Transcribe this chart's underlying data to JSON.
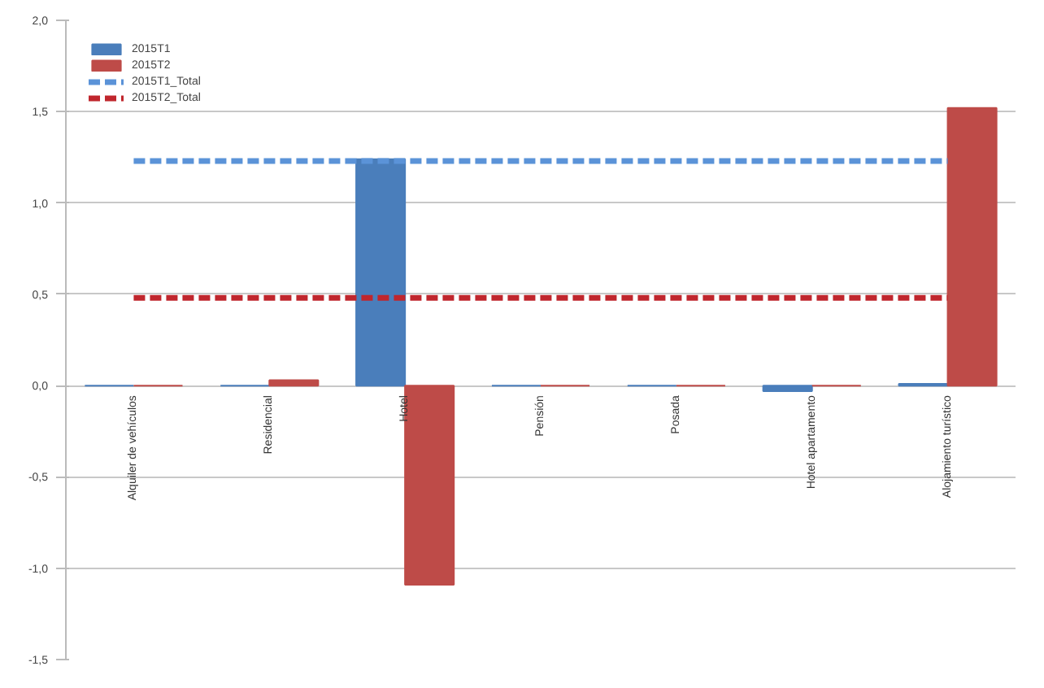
{
  "chart_data": {
    "type": "bar",
    "categories": [
      "Alquiler de vehículos",
      "Residencial",
      "Hotel",
      "Pensión",
      "Posada",
      "Hotel apartamento",
      "Alojamiento turístico"
    ],
    "series": [
      {
        "name": "2015T1",
        "color": "#4a7ebb",
        "values": [
          0,
          0,
          1.24,
          0,
          0,
          -0.03,
          0.01
        ]
      },
      {
        "name": "2015T2",
        "color": "#be4b48",
        "values": [
          0,
          0.03,
          -1.09,
          0,
          0,
          0,
          1.52
        ]
      },
      {
        "name": "2015T1_Total",
        "type": "line",
        "line_style": "dashed",
        "color": "#5b93d8",
        "values": [
          1.23,
          1.23,
          1.23,
          1.23,
          1.23,
          1.23,
          1.23
        ]
      },
      {
        "name": "2015T2_Total",
        "type": "line",
        "line_style": "dashed",
        "color": "#c0262d",
        "values": [
          0.48,
          0.48,
          0.48,
          0.48,
          0.48,
          0.48,
          0.48
        ]
      }
    ],
    "ylim": [
      -1.5,
      2.0
    ],
    "yticks": [
      {
        "value": 2.0,
        "label": "2,0"
      },
      {
        "value": 1.5,
        "label": "1,5"
      },
      {
        "value": 1.0,
        "label": "1,0"
      },
      {
        "value": 0.5,
        "label": "0,5"
      },
      {
        "value": 0.0,
        "label": "0,0"
      },
      {
        "value": -0.5,
        "label": "-0,5"
      },
      {
        "value": -1.0,
        "label": "-1,0"
      },
      {
        "value": -1.5,
        "label": "-1,5"
      }
    ],
    "grid": "y",
    "legend": "top left"
  }
}
